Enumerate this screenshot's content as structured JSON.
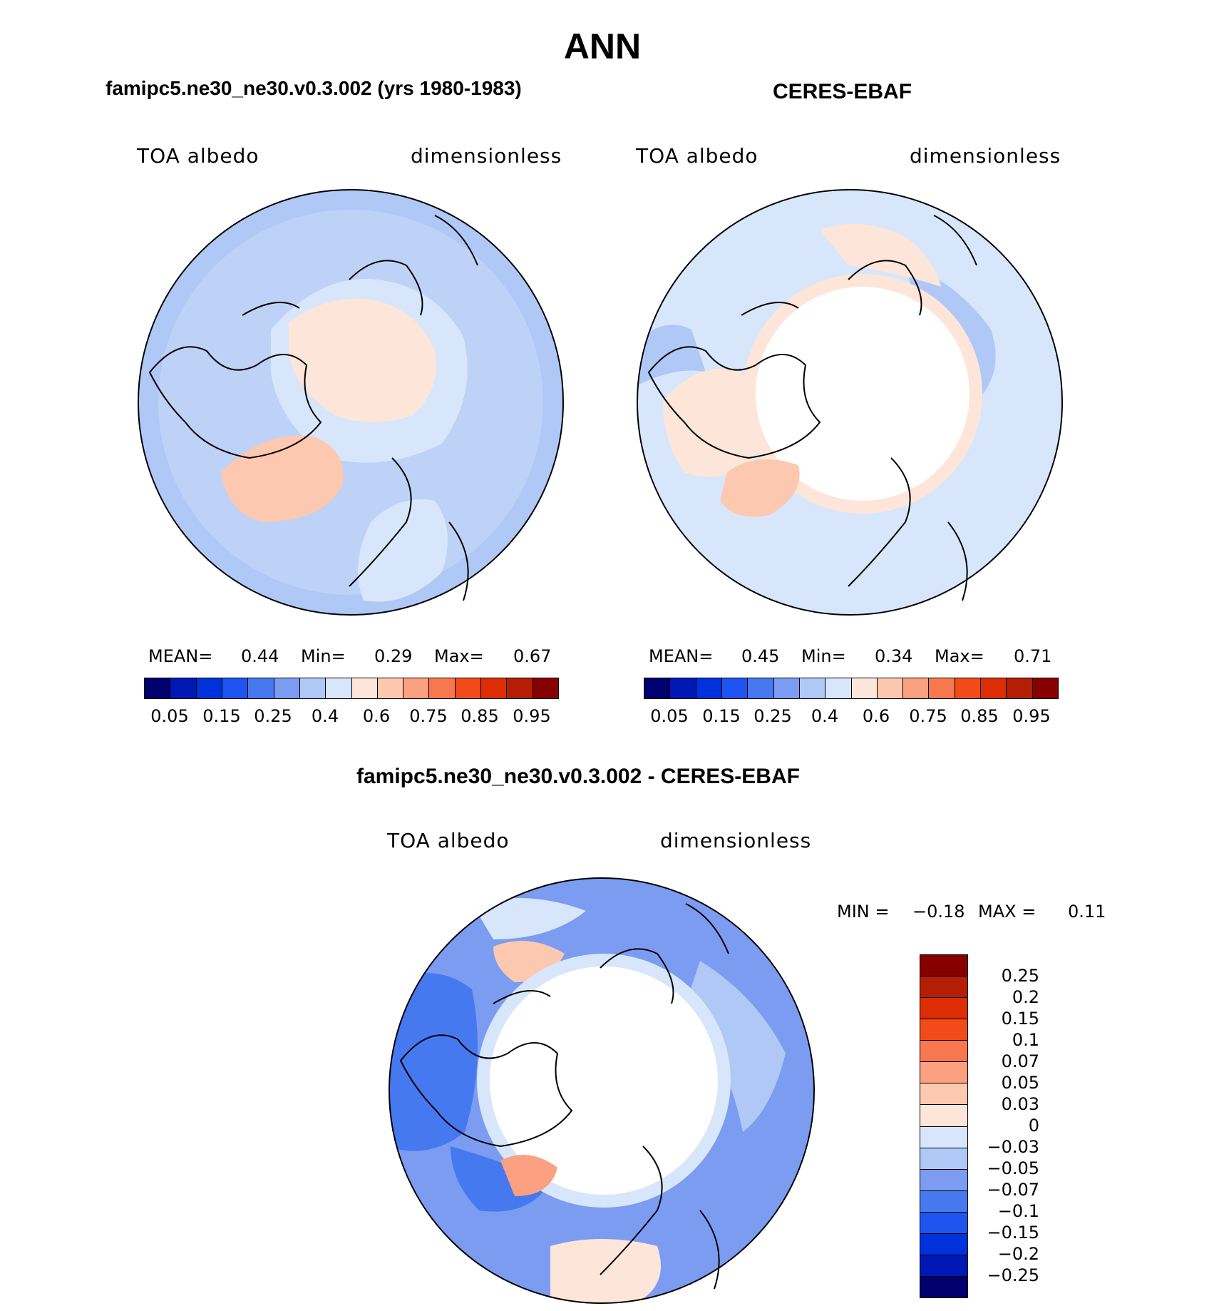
{
  "figure_title": "ANN",
  "palette_abs": [
    "#00006e",
    "#0018b4",
    "#0032dc",
    "#1e55f0",
    "#4678f0",
    "#7b9cf0",
    "#afc8f5",
    "#d7e6fa",
    "#fde6d9",
    "#fcc8b0",
    "#fca082",
    "#f7784e",
    "#f04b19",
    "#dc2d05",
    "#b41e05",
    "#870000"
  ],
  "palette_diff": [
    "#870000",
    "#b41e05",
    "#dc2d05",
    "#f04b19",
    "#f7784e",
    "#fca082",
    "#fcc8b0",
    "#fde6d9",
    "#d7e6fa",
    "#afc8f5",
    "#7b9cf0",
    "#4678f0",
    "#1e55f0",
    "#0032dc",
    "#0018b4",
    "#00006e"
  ],
  "panels": {
    "model": {
      "header": "famipc5.ne30_ne30.v0.3.002 (yrs 1980-1983)",
      "variable": "TOA albedo",
      "units": "dimensionless",
      "mean_label": "MEAN=",
      "mean_value": "0.44",
      "min_label": "Min=",
      "min_value": "0.29",
      "max_label": "Max=",
      "max_value": "0.67",
      "colorbar_ticks": [
        "0.05",
        "0.15",
        "0.25",
        "0.4",
        "0.6",
        "0.75",
        "0.85",
        "0.95"
      ]
    },
    "obs": {
      "header": "CERES-EBAF",
      "variable": "TOA albedo",
      "units": "dimensionless",
      "mean_label": "MEAN=",
      "mean_value": "0.45",
      "min_label": "Min=",
      "min_value": "0.34",
      "max_label": "Max=",
      "max_value": "0.71",
      "colorbar_ticks": [
        "0.05",
        "0.15",
        "0.25",
        "0.4",
        "0.6",
        "0.75",
        "0.85",
        "0.95"
      ]
    },
    "diff": {
      "header": "famipc5.ne30_ne30.v0.3.002 - CERES-EBAF",
      "variable": "TOA albedo",
      "units": "dimensionless",
      "min_label": "MIN =",
      "min_value": "−0.18",
      "max_label": "MAX =",
      "max_value": "0.11",
      "colorbar_ticks": [
        "0.25",
        "0.2",
        "0.15",
        "0.1",
        "0.07",
        "0.05",
        "0.03",
        "0",
        "−0.03",
        "−0.05",
        "−0.07",
        "−0.1",
        "−0.15",
        "−0.2",
        "−0.25"
      ]
    }
  }
}
